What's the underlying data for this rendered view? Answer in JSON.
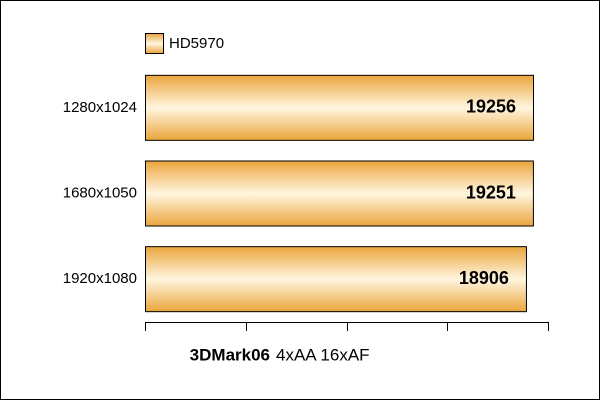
{
  "chart_data": {
    "type": "bar",
    "orientation": "horizontal",
    "categories": [
      "1280x1024",
      "1680x1050",
      "1920x1080"
    ],
    "series": [
      {
        "name": "HD5970",
        "color": "#eba53c",
        "values": [
          19256,
          19251,
          18906
        ]
      }
    ],
    "xlabel": {
      "main": "3DMark06",
      "detail": "4xAA 16xAF"
    },
    "xlim": [
      0,
      20000
    ],
    "xticks": [
      0,
      5000,
      10000,
      15000,
      20000
    ]
  }
}
